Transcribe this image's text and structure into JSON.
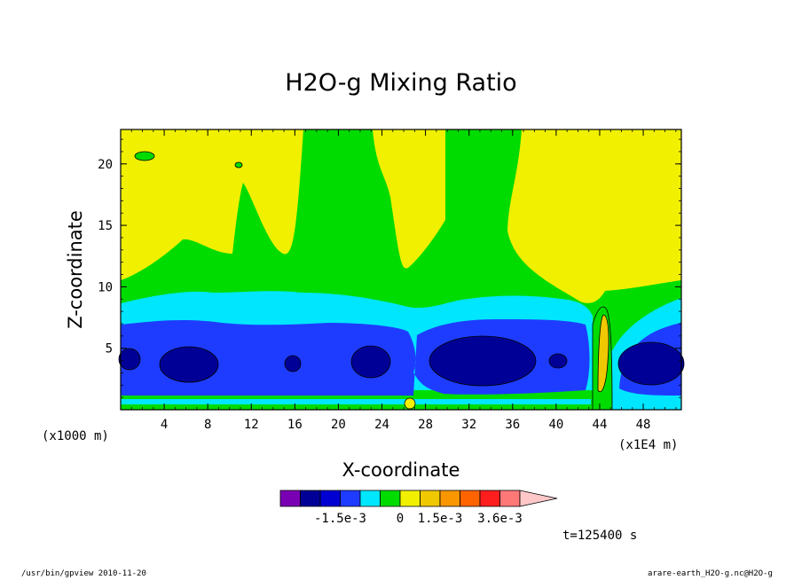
{
  "chart_data": {
    "type": "heatmap",
    "title": "H2O-g Mixing Ratio",
    "xlabel": "X-coordinate",
    "ylabel": "Z-coordinate",
    "x_unit_left": "(x1000 m)",
    "x_unit_right": "(x1E4 m)",
    "xlim": [
      0,
      51.5
    ],
    "ylim": [
      0,
      22.8
    ],
    "x_ticks": [
      "4",
      "8",
      "12",
      "16",
      "20",
      "24",
      "28",
      "32",
      "36",
      "40",
      "44",
      "48"
    ],
    "x_tick_values": [
      4,
      8,
      12,
      16,
      20,
      24,
      28,
      32,
      36,
      40,
      44,
      48
    ],
    "y_ticks": [
      "5",
      "10",
      "15",
      "20"
    ],
    "y_tick_values": [
      5,
      10,
      15,
      20
    ],
    "colorbar": {
      "colors": [
        "#7a00b4",
        "#000096",
        "#0000d2",
        "#1e3cff",
        "#00e6ff",
        "#00dc00",
        "#f0f000",
        "#f0c800",
        "#fa9600",
        "#ff6400",
        "#ff1e1e",
        "#ff7878",
        "#ffc8c8"
      ],
      "labels": [
        "-1.5e-3",
        "0",
        "1.5e-3",
        "3.6e-3"
      ],
      "label_slots": [
        3,
        6,
        8,
        11
      ]
    },
    "field_colors": {
      "high_positive": "#f0f000",
      "positive": "#00dc00",
      "near_zero": "#00e6ff",
      "negative": "#1e3cff",
      "strong_negative": "#000096",
      "peak": "#f0c800"
    },
    "time_label": "t=125400 s"
  },
  "footer": {
    "left": "/usr/bin/gpview  2010-11-20",
    "right": "arare-earth_H2O-g.nc@H2O-g"
  }
}
